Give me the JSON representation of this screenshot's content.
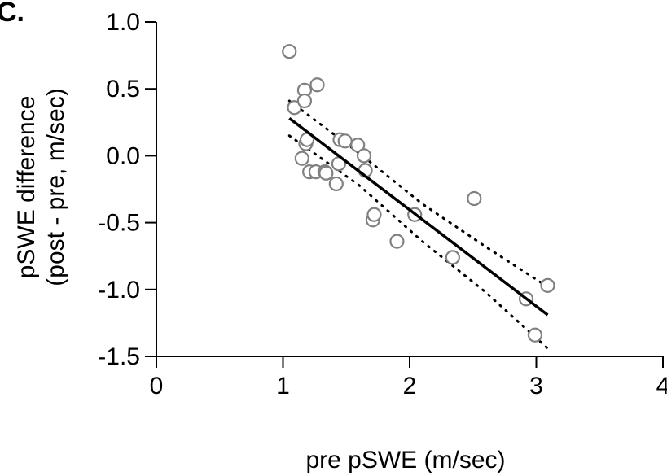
{
  "panel_label": "C.",
  "chart_data": {
    "type": "scatter",
    "xlabel": "pre pSWE (m/sec)",
    "ylabel_lines": [
      "pSWE difference",
      "(post - pre, m/sec)"
    ],
    "xlim": [
      0,
      4
    ],
    "ylim": [
      -1.5,
      1.0
    ],
    "x_ticks": [
      0,
      1,
      2,
      3,
      4
    ],
    "x_tick_labels": [
      "0",
      "1",
      "2",
      "3",
      "4"
    ],
    "y_ticks": [
      1.0,
      0.5,
      0.0,
      -0.5,
      -1.0,
      -1.5
    ],
    "y_tick_labels": [
      "1.0",
      "0.5",
      "0.0",
      "-0.5",
      "-1.0",
      "-1.5"
    ],
    "grid": false,
    "points": [
      {
        "x": 1.05,
        "y": 0.78
      },
      {
        "x": 1.09,
        "y": 0.36
      },
      {
        "x": 1.17,
        "y": 0.49
      },
      {
        "x": 1.17,
        "y": 0.41
      },
      {
        "x": 1.27,
        "y": 0.53
      },
      {
        "x": 1.15,
        "y": -0.02
      },
      {
        "x": 1.18,
        "y": 0.09
      },
      {
        "x": 1.19,
        "y": 0.12
      },
      {
        "x": 1.21,
        "y": -0.12
      },
      {
        "x": 1.26,
        "y": -0.12
      },
      {
        "x": 1.33,
        "y": -0.12
      },
      {
        "x": 1.34,
        "y": -0.13
      },
      {
        "x": 1.42,
        "y": -0.21
      },
      {
        "x": 1.44,
        "y": -0.06
      },
      {
        "x": 1.45,
        "y": 0.12
      },
      {
        "x": 1.49,
        "y": 0.11
      },
      {
        "x": 1.59,
        "y": 0.08
      },
      {
        "x": 1.64,
        "y": 0.0
      },
      {
        "x": 1.65,
        "y": -0.11
      },
      {
        "x": 1.71,
        "y": -0.48
      },
      {
        "x": 1.72,
        "y": -0.44
      },
      {
        "x": 1.9,
        "y": -0.64
      },
      {
        "x": 2.04,
        "y": -0.44
      },
      {
        "x": 2.34,
        "y": -0.76
      },
      {
        "x": 2.51,
        "y": -0.32
      },
      {
        "x": 2.92,
        "y": -1.07
      },
      {
        "x": 2.99,
        "y": -1.34
      },
      {
        "x": 3.09,
        "y": -0.97
      }
    ],
    "regression": {
      "x": [
        1.05,
        3.09
      ],
      "y": [
        0.28,
        -1.19
      ]
    },
    "ci_upper": [
      {
        "x": 1.05,
        "y": 0.41
      },
      {
        "x": 1.6,
        "y": 0.02
      },
      {
        "x": 2.1,
        "y": -0.36
      },
      {
        "x": 2.6,
        "y": -0.68
      },
      {
        "x": 3.09,
        "y": -0.98
      }
    ],
    "ci_lower": [
      {
        "x": 1.05,
        "y": 0.15
      },
      {
        "x": 1.6,
        "y": -0.22
      },
      {
        "x": 2.1,
        "y": -0.64
      },
      {
        "x": 2.6,
        "y": -1.02
      },
      {
        "x": 3.09,
        "y": -1.44
      }
    ],
    "colors": {
      "marker_stroke": "#808080",
      "marker_fill": "#ffffff",
      "line": "#000000",
      "axis": "#000000"
    }
  }
}
